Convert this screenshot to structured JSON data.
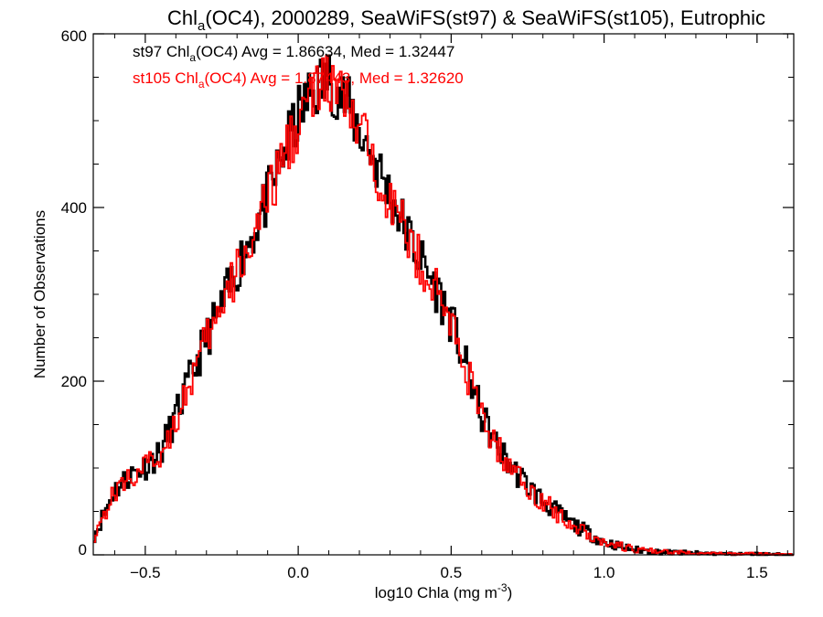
{
  "chart_data": {
    "type": "line",
    "title": {
      "prefix": "Chl",
      "sub": "a",
      "suffix": "(OC4), 2000289, SeaWiFS(st97) & SeaWiFS(st105), Eutrophic"
    },
    "xlabel": {
      "main": "log10 Chla (mg m",
      "sup": "-3",
      "close": ")"
    },
    "ylabel": "Number of Observations",
    "xlim": [
      -0.67,
      1.62
    ],
    "ylim": [
      0,
      600
    ],
    "xticks": [
      -0.5,
      0.0,
      0.5,
      1.0,
      1.5
    ],
    "xtick_labels": [
      "−0.5",
      "0.0",
      "0.5",
      "1.0",
      "1.5"
    ],
    "yticks": [
      0,
      200,
      400,
      600
    ],
    "ytick_labels": [
      "0",
      "200",
      "400",
      "600"
    ],
    "legend_position": "top-left",
    "series": [
      {
        "color": "#000000",
        "legend": {
          "prefix": "st97 Chl",
          "sub": "a",
          "suffix": "(OC4) Avg = 1.86634, Med = 1.32447"
        },
        "x": [
          -0.67,
          -0.6,
          -0.55,
          -0.5,
          -0.45,
          -0.4,
          -0.35,
          -0.3,
          -0.25,
          -0.2,
          -0.15,
          -0.1,
          -0.05,
          0.0,
          0.05,
          0.1,
          0.15,
          0.2,
          0.25,
          0.3,
          0.35,
          0.4,
          0.45,
          0.5,
          0.55,
          0.6,
          0.65,
          0.7,
          0.75,
          0.8,
          0.85,
          0.9,
          0.95,
          1.0,
          1.05,
          1.1,
          1.2,
          1.3,
          1.4,
          1.5,
          1.62
        ],
        "values": [
          20,
          75,
          92,
          102,
          118,
          160,
          205,
          250,
          285,
          330,
          370,
          410,
          460,
          505,
          535,
          550,
          525,
          490,
          455,
          415,
          375,
          340,
          308,
          270,
          215,
          160,
          125,
          100,
          80,
          62,
          48,
          35,
          25,
          15,
          10,
          6,
          3,
          2,
          1,
          1,
          0
        ]
      },
      {
        "color": "#ff0000",
        "legend": {
          "prefix": "st105 Chl",
          "sub": "a",
          "suffix": "(OC4) Avg = 1.87443, Med = 1.32620"
        },
        "x": [
          -0.67,
          -0.6,
          -0.55,
          -0.5,
          -0.45,
          -0.4,
          -0.35,
          -0.3,
          -0.25,
          -0.2,
          -0.15,
          -0.1,
          -0.05,
          0.0,
          0.05,
          0.1,
          0.15,
          0.2,
          0.25,
          0.3,
          0.35,
          0.4,
          0.45,
          0.5,
          0.55,
          0.6,
          0.65,
          0.7,
          0.75,
          0.8,
          0.85,
          0.9,
          0.95,
          1.0,
          1.05,
          1.1,
          1.2,
          1.3,
          1.4,
          1.5,
          1.62
        ],
        "values": [
          20,
          72,
          90,
          100,
          115,
          158,
          200,
          246,
          282,
          326,
          366,
          406,
          456,
          500,
          530,
          545,
          522,
          487,
          452,
          412,
          372,
          337,
          305,
          268,
          213,
          158,
          124,
          99,
          79,
          61,
          47,
          34,
          24,
          15,
          10,
          6,
          3,
          2,
          1,
          1,
          0
        ]
      }
    ]
  }
}
